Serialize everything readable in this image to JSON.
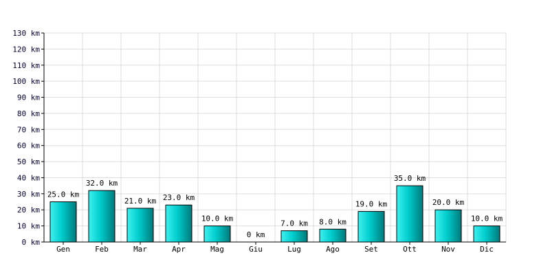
{
  "chart_data": {
    "type": "bar",
    "categories": [
      "Gen",
      "Feb",
      "Mar",
      "Apr",
      "Mag",
      "Giu",
      "Lug",
      "Ago",
      "Set",
      "Ott",
      "Nov",
      "Dic"
    ],
    "values": [
      25,
      32,
      21,
      23,
      10,
      0,
      7,
      8,
      19,
      35,
      20,
      10
    ],
    "data_labels": [
      "25.0 km",
      "32.0 km",
      "21.0 km",
      "23.0 km",
      "10.0 km",
      "0 km",
      "7.0 km",
      "8.0 km",
      "19.0 km",
      "35.0 km",
      "20.0 km",
      "10.0 km"
    ],
    "y_ticks": [
      "0 km",
      "10 km",
      "20 km",
      "30 km",
      "40 km",
      "50 km",
      "60 km",
      "70 km",
      "80 km",
      "90 km",
      "100 km",
      "110 km",
      "120 km",
      "130 km"
    ],
    "ylim": [
      0,
      130
    ],
    "y_step": 10,
    "grid": true,
    "title": "",
    "xlabel": "",
    "ylabel": "",
    "colors": {
      "bar_light": "#3ff0f0",
      "bar_mid": "#00cccc",
      "bar_dark": "#007a7a",
      "bar_border": "#000000",
      "grid": "#dddddd",
      "axis": "#000000"
    }
  }
}
